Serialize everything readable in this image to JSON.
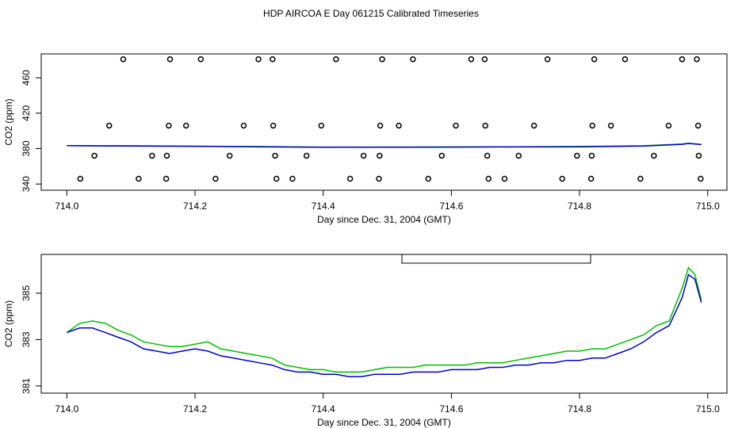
{
  "chart_data": [
    {
      "type": "scatter",
      "title": "HDP AIRCOA E  Day 061215  Calibrated Timeseries",
      "x_label": "Day since Dec. 31, 2004 (GMT)",
      "y_label": "CO2 (ppm)",
      "xlim": [
        713.96,
        715.03
      ],
      "ylim": [
        333,
        487
      ],
      "xticks": [
        {
          "value": 714,
          "label": "714.0"
        },
        714.2,
        714.4,
        714.6,
        714.8,
        {
          "value": 715,
          "label": "715.0"
        }
      ],
      "yticks": [
        340,
        380,
        420,
        460
      ],
      "series": [
        {
          "type": "scatter",
          "color": "#000000",
          "x": [
            714.088,
            714.161,
            714.209,
            714.299,
            714.321,
            714.42,
            714.492,
            714.54,
            714.631,
            714.652,
            714.75,
            714.823,
            714.871,
            714.96,
            714.983,
            714.066,
            714.159,
            714.186,
            714.276,
            714.322,
            714.397,
            714.489,
            714.518,
            714.607,
            714.653,
            714.729,
            714.82,
            714.849,
            714.939,
            714.985,
            714.043,
            714.133,
            714.156,
            714.254,
            714.325,
            714.374,
            714.463,
            714.488,
            714.585,
            714.656,
            714.705,
            714.796,
            714.819,
            714.916,
            714.986,
            714.021,
            714.112,
            714.155,
            714.232,
            714.327,
            714.352,
            714.442,
            714.487,
            714.564,
            714.658,
            714.683,
            714.773,
            714.818,
            714.895,
            714.989
          ],
          "values": [
            481,
            481,
            481,
            481,
            481,
            481,
            481,
            481,
            481,
            481,
            481,
            481,
            481,
            481,
            481,
            406,
            406,
            406,
            406,
            406,
            406,
            406,
            406,
            406,
            406,
            406,
            406,
            406,
            406,
            406,
            372,
            372,
            372,
            372,
            372,
            372,
            372,
            372,
            372,
            372,
            372,
            372,
            372,
            372,
            372,
            346,
            346,
            346,
            346,
            346,
            346,
            346,
            346,
            346,
            346,
            346,
            346,
            346,
            346,
            346
          ]
        },
        {
          "type": "line",
          "color": "#00c000",
          "x": [
            714.0,
            714.1,
            714.2,
            714.3,
            714.4,
            714.5,
            714.6,
            714.7,
            714.8,
            714.9,
            714.96,
            714.97,
            714.99
          ],
          "values": [
            383.3,
            383.2,
            382.8,
            382.3,
            381.7,
            381.8,
            381.9,
            382.1,
            382.5,
            383.2,
            385.2,
            386.1,
            384.7
          ]
        },
        {
          "type": "line",
          "color": "#0000cc",
          "x": [
            714.0,
            714.1,
            714.2,
            714.3,
            714.4,
            714.5,
            714.6,
            714.7,
            714.8,
            714.9,
            714.96,
            714.97,
            714.99
          ],
          "values": [
            383.3,
            382.9,
            382.6,
            382.0,
            381.5,
            381.5,
            381.7,
            381.9,
            382.1,
            382.9,
            384.8,
            385.8,
            384.6
          ]
        }
      ]
    },
    {
      "type": "line",
      "x_label": "Day since Dec. 31, 2004 (GMT)",
      "y_label": "CO2 (ppm)",
      "xlim": [
        713.96,
        715.03
      ],
      "ylim": [
        380.69,
        386.67
      ],
      "xticks": [
        {
          "value": 714,
          "label": "714.0"
        },
        714.2,
        714.4,
        714.6,
        714.8,
        {
          "value": 715,
          "label": "715.0"
        }
      ],
      "yticks": [
        381,
        383,
        385
      ],
      "series": [
        {
          "type": "line",
          "color": "#00c000",
          "x": [
            714.0,
            714.02,
            714.04,
            714.06,
            714.08,
            714.1,
            714.12,
            714.14,
            714.16,
            714.18,
            714.2,
            714.22,
            714.24,
            714.26,
            714.28,
            714.3,
            714.32,
            714.34,
            714.36,
            714.38,
            714.4,
            714.42,
            714.44,
            714.46,
            714.48,
            714.5,
            714.52,
            714.54,
            714.56,
            714.58,
            714.6,
            714.62,
            714.64,
            714.66,
            714.68,
            714.7,
            714.72,
            714.74,
            714.76,
            714.78,
            714.8,
            714.82,
            714.84,
            714.86,
            714.88,
            714.9,
            714.92,
            714.94,
            714.96,
            714.97,
            714.98,
            714.99
          ],
          "values": [
            383.3,
            383.7,
            383.8,
            383.7,
            383.4,
            383.2,
            382.9,
            382.8,
            382.7,
            382.7,
            382.8,
            382.9,
            382.6,
            382.5,
            382.4,
            382.3,
            382.2,
            381.9,
            381.8,
            381.7,
            381.7,
            381.6,
            381.6,
            381.6,
            381.7,
            381.8,
            381.8,
            381.8,
            381.9,
            381.9,
            381.9,
            381.9,
            382.0,
            382.0,
            382.0,
            382.1,
            382.2,
            382.3,
            382.4,
            382.5,
            382.5,
            382.6,
            382.6,
            382.8,
            383.0,
            383.2,
            383.6,
            383.8,
            385.2,
            386.1,
            385.8,
            384.7
          ]
        },
        {
          "type": "line",
          "color": "#0000cc",
          "x": [
            714.0,
            714.02,
            714.04,
            714.06,
            714.08,
            714.1,
            714.12,
            714.14,
            714.16,
            714.18,
            714.2,
            714.22,
            714.24,
            714.26,
            714.28,
            714.3,
            714.32,
            714.34,
            714.36,
            714.38,
            714.4,
            714.42,
            714.44,
            714.46,
            714.48,
            714.5,
            714.52,
            714.54,
            714.56,
            714.58,
            714.6,
            714.62,
            714.64,
            714.66,
            714.68,
            714.7,
            714.72,
            714.74,
            714.76,
            714.78,
            714.8,
            714.82,
            714.84,
            714.86,
            714.88,
            714.9,
            714.92,
            714.94,
            714.96,
            714.97,
            714.98,
            714.99
          ],
          "values": [
            383.3,
            383.5,
            383.5,
            383.3,
            383.1,
            382.9,
            382.6,
            382.5,
            382.4,
            382.5,
            382.6,
            382.5,
            382.3,
            382.2,
            382.1,
            382.0,
            381.9,
            381.7,
            381.6,
            381.6,
            381.5,
            381.5,
            381.4,
            381.4,
            381.5,
            381.5,
            381.5,
            381.6,
            381.6,
            381.6,
            381.7,
            381.7,
            381.7,
            381.8,
            381.8,
            381.9,
            381.9,
            382.0,
            382.0,
            382.1,
            382.1,
            382.2,
            382.2,
            382.4,
            382.6,
            382.9,
            383.3,
            383.6,
            384.8,
            385.8,
            385.6,
            384.6
          ]
        }
      ]
    }
  ]
}
